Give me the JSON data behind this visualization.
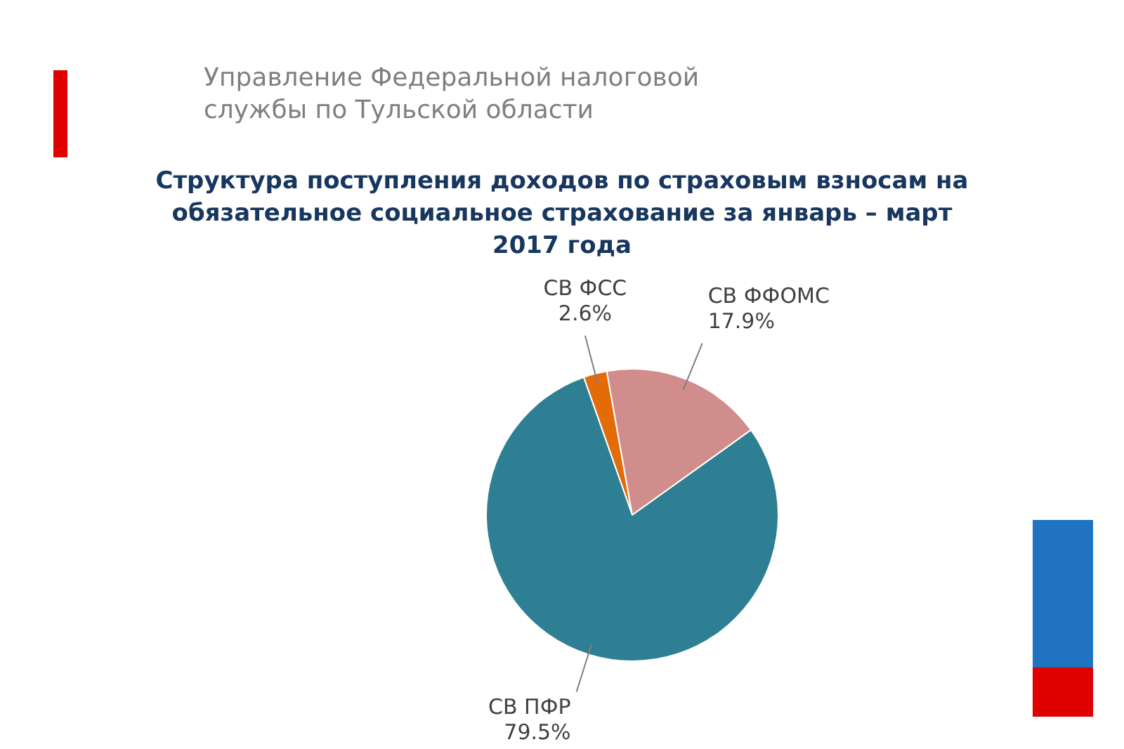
{
  "chart_data": {
    "type": "pie",
    "title": "Структура поступления доходов по страховым взносам на обязательное социальное страхование за январь – март 2017 года",
    "annotations": [
      "Управление Федеральной налоговой службы по Тульской области"
    ],
    "categories": [
      "СВ ФСС",
      "СВ ФФОМС",
      "СВ ПФР"
    ],
    "values": [
      2.6,
      17.9,
      79.5
    ],
    "value_labels": [
      "2.6%",
      "17.9%",
      "79.5%"
    ],
    "colors": [
      "#e36c09",
      "#d08d8b",
      "#2e7f94"
    ],
    "legend": false
  }
}
